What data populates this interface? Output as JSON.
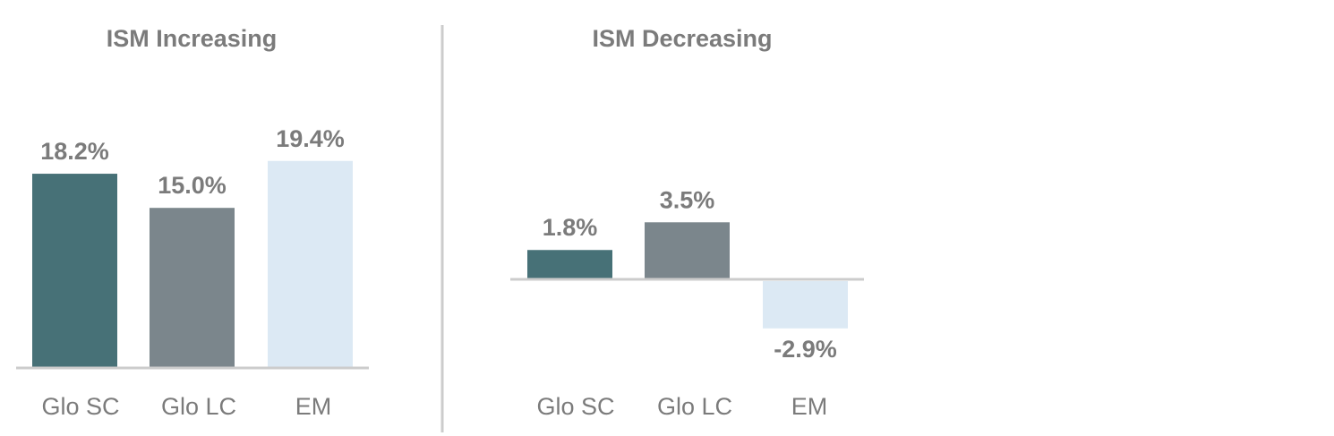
{
  "chart_data": [
    {
      "type": "bar",
      "title": "ISM Increasing",
      "categories": [
        "Glo SC",
        "Glo LC",
        "EM"
      ],
      "values": [
        18.2,
        15.0,
        19.4
      ],
      "value_labels": [
        "18.2%",
        "15.0%",
        "19.4%"
      ],
      "colors": [
        "#477177",
        "#7b868c",
        "#dce9f4"
      ],
      "ylim": [
        0,
        25
      ]
    },
    {
      "type": "bar",
      "title": "ISM Decreasing",
      "categories": [
        "Glo SC",
        "Glo LC",
        "EM"
      ],
      "values": [
        1.8,
        3.5,
        -2.9
      ],
      "value_labels": [
        "1.8%",
        "3.5%",
        "-2.9%"
      ],
      "colors": [
        "#477177",
        "#7b868c",
        "#dce9f4"
      ],
      "ylim": [
        -6,
        12
      ]
    }
  ],
  "colors": {
    "axis": "#cccccc",
    "divider": "#cccccc",
    "text": "#7b7b7b"
  }
}
